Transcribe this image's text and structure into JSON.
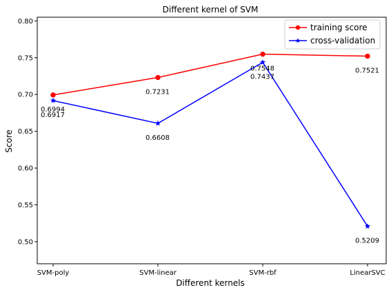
{
  "chart_data": {
    "type": "line",
    "title": "Different kernel of SVM",
    "xlabel": "Different kernels",
    "ylabel": "Score",
    "categories": [
      "SVM-poly",
      "SVM-linear",
      "SVM-rbf",
      "LinearSVC"
    ],
    "ylim": [
      0.47,
      0.805
    ],
    "yticks": [
      "0.50",
      "0.55",
      "0.60",
      "0.65",
      "0.70",
      "0.75",
      "0.80"
    ],
    "grid": false,
    "legend_position": "top-right",
    "series": [
      {
        "name": "training score",
        "marker": "circle",
        "color": "#ff0000",
        "values": [
          0.6994,
          0.7231,
          0.7548,
          0.7521
        ],
        "labels": [
          "0.6994",
          "0.7231",
          "0.7548",
          "0.7521"
        ]
      },
      {
        "name": "cross-validation",
        "marker": "star",
        "color": "#0000ff",
        "values": [
          0.6917,
          0.6608,
          0.7437,
          0.5209
        ],
        "labels": [
          "0.6917",
          "0.6608",
          "0.7437",
          "0.5209"
        ]
      }
    ]
  }
}
